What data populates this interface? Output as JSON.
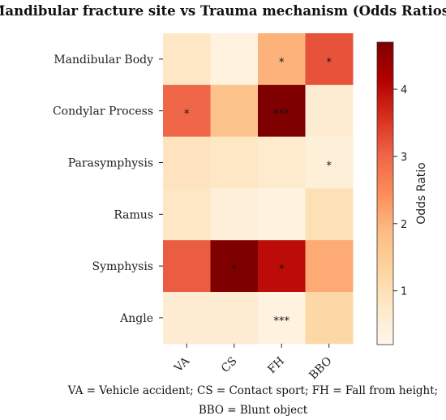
{
  "chart_data": {
    "type": "heatmap",
    "title": "Mandibular fracture site vs Trauma mechanism (Odds Ratios)",
    "rows": [
      "Mandibular Body",
      "Condylar Process",
      "Parasymphysis",
      "Ramus",
      "Symphysis",
      "Angle"
    ],
    "columns": [
      "VA",
      "CS",
      "FH",
      "BBO"
    ],
    "values": [
      [
        0.8,
        0.4,
        2.0,
        3.2
      ],
      [
        3.0,
        1.7,
        4.7,
        0.6
      ],
      [
        0.9,
        0.8,
        0.7,
        0.5
      ],
      [
        0.8,
        0.5,
        0.4,
        1.0
      ],
      [
        3.1,
        4.7,
        4.0,
        2.1
      ],
      [
        0.6,
        0.6,
        0.4,
        1.2
      ]
    ],
    "annotations": [
      [
        "",
        "",
        "*",
        "*"
      ],
      [
        "*",
        "",
        "***",
        ""
      ],
      [
        "",
        "",
        "",
        "*"
      ],
      [
        "",
        "",
        "",
        ""
      ],
      [
        "",
        "*",
        "*",
        ""
      ],
      [
        "",
        "",
        "***",
        ""
      ]
    ],
    "colorbar": {
      "label": "Odds Ratio",
      "range": [
        0.2,
        4.7
      ],
      "ticks": [
        "1",
        "2",
        "3",
        "4"
      ]
    },
    "colormap": [
      "#fff7ec",
      "#fee8c8",
      "#fdd49e",
      "#fdbb84",
      "#fc8d59",
      "#ef6548",
      "#d7301f",
      "#b30000",
      "#7f0000"
    ],
    "grid": false,
    "legend_placement": "right",
    "footnote_lines": [
      "VA = Vehicle accident; CS = Contact sport; FH = Fall from height;",
      "BBO = Blunt object"
    ]
  }
}
